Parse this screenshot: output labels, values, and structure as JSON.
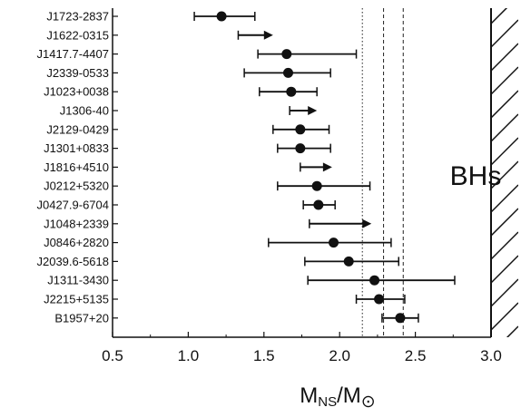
{
  "chart_data": {
    "type": "scatter",
    "title": "",
    "xlabel": "M_NS/M_⊙",
    "xlabel_parts": {
      "main": "M",
      "main_sub": "NS",
      "sep": "/M",
      "sep_sub": "⊙"
    },
    "ylabel": "",
    "xlim": [
      0.5,
      3.0
    ],
    "xticks": [
      0.5,
      1.0,
      1.5,
      2.0,
      2.5,
      3.0
    ],
    "xtick_labels": [
      "0.5",
      "1.0",
      "1.5",
      "2.0",
      "2.5",
      "3.0"
    ],
    "region_label": "BHs",
    "region_start": 3.0,
    "reference_lines": [
      {
        "x": 2.15,
        "style": "dotted"
      },
      {
        "x": 2.29,
        "style": "dashed"
      },
      {
        "x": 2.42,
        "style": "dashed"
      }
    ],
    "pulsars": [
      {
        "name": "J1723-2837",
        "value": 1.22,
        "low": 1.04,
        "high": 1.44,
        "lower_limit": false
      },
      {
        "name": "J1622-0315",
        "value": 1.33,
        "low": 1.33,
        "high": 1.56,
        "lower_limit": true
      },
      {
        "name": "J1417.7-4407",
        "value": 1.65,
        "low": 1.46,
        "high": 2.11,
        "lower_limit": false
      },
      {
        "name": "J2339-0533",
        "value": 1.66,
        "low": 1.37,
        "high": 1.94,
        "lower_limit": false
      },
      {
        "name": "J1023+0038",
        "value": 1.68,
        "low": 1.47,
        "high": 1.85,
        "lower_limit": false
      },
      {
        "name": "J1306-40",
        "value": 1.67,
        "low": 1.67,
        "high": 1.85,
        "lower_limit": true
      },
      {
        "name": "J2129-0429",
        "value": 1.74,
        "low": 1.56,
        "high": 1.93,
        "lower_limit": false
      },
      {
        "name": "J1301+0833",
        "value": 1.74,
        "low": 1.59,
        "high": 1.94,
        "lower_limit": false
      },
      {
        "name": "J1816+4510",
        "value": 1.74,
        "low": 1.74,
        "high": 1.95,
        "lower_limit": true
      },
      {
        "name": "J0212+5320",
        "value": 1.85,
        "low": 1.59,
        "high": 2.2,
        "lower_limit": false
      },
      {
        "name": "J0427.9-6704",
        "value": 1.86,
        "low": 1.76,
        "high": 1.97,
        "lower_limit": false
      },
      {
        "name": "J1048+2339",
        "value": 1.8,
        "low": 1.8,
        "high": 2.21,
        "lower_limit": true
      },
      {
        "name": "J0846+2820",
        "value": 1.96,
        "low": 1.53,
        "high": 2.34,
        "lower_limit": false
      },
      {
        "name": "J2039.6-5618",
        "value": 2.06,
        "low": 1.77,
        "high": 2.39,
        "lower_limit": false
      },
      {
        "name": "J1311-3430",
        "value": 2.23,
        "low": 1.79,
        "high": 2.76,
        "lower_limit": false
      },
      {
        "name": "J2215+5135",
        "value": 2.26,
        "low": 2.11,
        "high": 2.43,
        "lower_limit": false
      },
      {
        "name": "B1957+20",
        "value": 2.4,
        "low": 2.28,
        "high": 2.52,
        "lower_limit": false
      }
    ]
  }
}
